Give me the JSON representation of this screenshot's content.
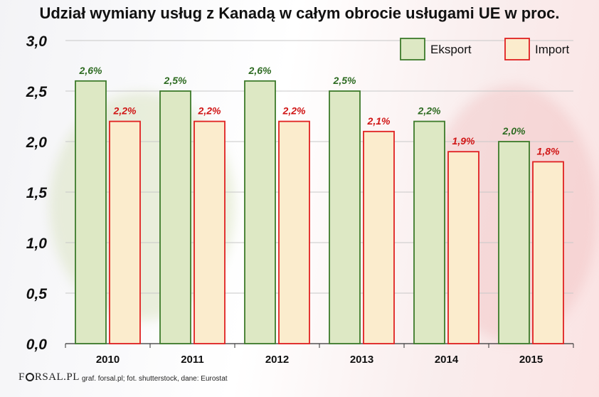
{
  "chart_data": {
    "type": "bar",
    "title": "Udział wymiany usług z Kanadą w całym obrocie usługami UE w proc.",
    "categories": [
      "2010",
      "2011",
      "2012",
      "2013",
      "2014",
      "2015"
    ],
    "series": [
      {
        "name": "Eksport",
        "values": [
          2.6,
          2.5,
          2.6,
          2.5,
          2.2,
          2.0
        ],
        "labels": [
          "2,6%",
          "2,5%",
          "2,6%",
          "2,5%",
          "2,2%",
          "2,0%"
        ],
        "fill": "#dde8c4",
        "stroke": "#3c7a2a",
        "label_color": "#2e6b22"
      },
      {
        "name": "Import",
        "values": [
          2.2,
          2.2,
          2.2,
          2.1,
          1.9,
          1.8
        ],
        "labels": [
          "2,2%",
          "2,2%",
          "2,2%",
          "2,1%",
          "1,9%",
          "1,8%"
        ],
        "fill": "#fbeccd",
        "stroke": "#e02020",
        "label_color": "#d01515"
      }
    ],
    "ylim": [
      0,
      3.0
    ],
    "yticks": [
      0.0,
      0.5,
      1.0,
      1.5,
      2.0,
      2.5,
      3.0
    ],
    "ytick_labels": [
      "0,0",
      "0,5",
      "1,0",
      "1,5",
      "2,0",
      "2,5",
      "3,0"
    ],
    "grid": true,
    "legend": "top-right"
  },
  "footer": {
    "logo_pre": "F",
    "logo_post": "RSAL.PL",
    "credit": "graf. forsal.pl; fot. shutterstock, dane: Eurostat"
  }
}
